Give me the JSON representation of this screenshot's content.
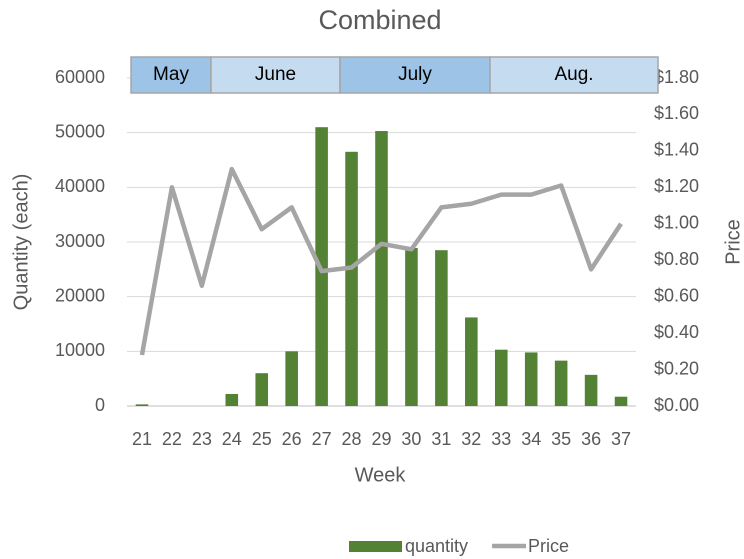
{
  "chart_data": {
    "type": "bar",
    "title": "Combined",
    "x_label": "Week",
    "y_label": "Quantity (each)",
    "y2_label": "Price",
    "categories": [
      "21",
      "22",
      "23",
      "24",
      "25",
      "26",
      "27",
      "28",
      "29",
      "30",
      "31",
      "32",
      "33",
      "34",
      "35",
      "36",
      "37"
    ],
    "series": [
      {
        "name": "quantity",
        "type": "bar",
        "color": "#548235",
        "values": [
          300,
          0,
          0,
          2200,
          6000,
          10000,
          51000,
          46500,
          50300,
          28900,
          28500,
          16200,
          10300,
          9800,
          8300,
          5700,
          1700
        ]
      },
      {
        "name": "Price",
        "type": "line",
        "axis": "y2",
        "color": "#a5a5a5",
        "values": [
          0.28,
          1.2,
          0.66,
          1.3,
          0.97,
          1.09,
          0.74,
          0.76,
          0.89,
          0.86,
          1.09,
          1.11,
          1.16,
          1.16,
          1.21,
          0.75,
          1.0
        ]
      }
    ],
    "ylim": [
      0,
      60000
    ],
    "yticks": [
      0,
      10000,
      20000,
      30000,
      40000,
      50000,
      60000
    ],
    "y2lim": [
      0,
      1.8
    ],
    "y2ticks": [
      {
        "value": 0,
        "label": "$0.00"
      },
      {
        "value": 0.2,
        "label": "$0.20"
      },
      {
        "value": 0.4,
        "label": "$0.40"
      },
      {
        "value": 0.6,
        "label": "$0.60"
      },
      {
        "value": 0.8,
        "label": "$0.80"
      },
      {
        "value": 1.0,
        "label": "$1.00"
      },
      {
        "value": 1.2,
        "label": "$1.20"
      },
      {
        "value": 1.4,
        "label": "$1.40"
      },
      {
        "value": 1.6,
        "label": "$1.60"
      },
      {
        "value": 1.8,
        "label": "$1.80"
      }
    ],
    "grid": true,
    "legend": "bottom",
    "month_bands": [
      {
        "label": "May",
        "color": "#9dc3e6"
      },
      {
        "label": "June",
        "color": "#c5dbf0"
      },
      {
        "label": "July",
        "color": "#9dc3e6"
      },
      {
        "label": "Aug.",
        "color": "#c5dbf0"
      }
    ]
  }
}
